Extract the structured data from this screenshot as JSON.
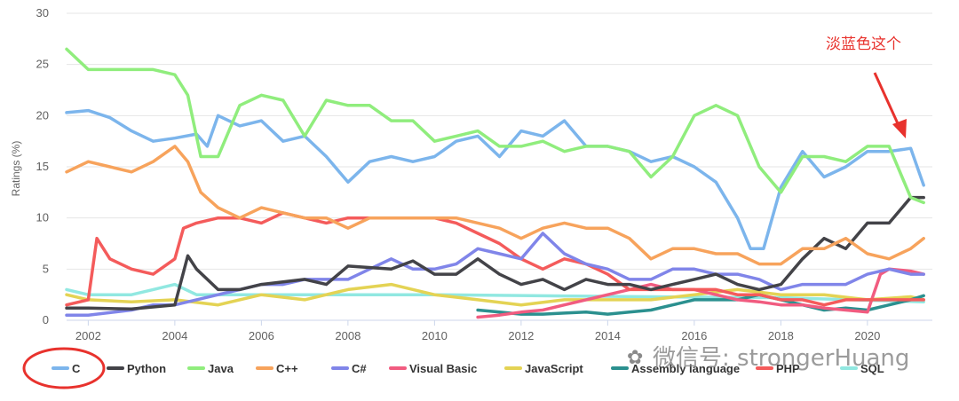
{
  "chart_data": {
    "type": "line",
    "ylabel": "Ratings (%)",
    "xlabel": "",
    "ylim": [
      0,
      30
    ],
    "yticks": [
      "0",
      "5",
      "10",
      "15",
      "20",
      "25",
      "30"
    ],
    "xlim": [
      2001.5,
      2021.5
    ],
    "xticks": [
      "2002",
      "2004",
      "2006",
      "2008",
      "2010",
      "2012",
      "2014",
      "2016",
      "2018",
      "2020"
    ],
    "grid": true,
    "legend": "bottom",
    "series": [
      {
        "name": "C",
        "color": "#7cb5ec",
        "width": 3.5,
        "x": [
          2001.5,
          2002,
          2002.5,
          2003,
          2003.5,
          2004,
          2004.5,
          2004.75,
          2005,
          2005.5,
          2006,
          2006.5,
          2007,
          2007.5,
          2008,
          2008.5,
          2009,
          2009.5,
          2010,
          2010.5,
          2011,
          2011.5,
          2012,
          2012.5,
          2013,
          2013.5,
          2014,
          2014.5,
          2015,
          2015.5,
          2016,
          2016.5,
          2017,
          2017.3,
          2017.6,
          2018,
          2018.5,
          2019,
          2019.5,
          2020,
          2020.5,
          2021,
          2021.3
        ],
        "y": [
          20.3,
          20.5,
          19.8,
          18.5,
          17.5,
          17.8,
          18.2,
          17,
          20,
          19,
          19.5,
          17.5,
          18,
          16,
          13.5,
          15.5,
          16,
          15.5,
          16,
          17.5,
          18,
          16,
          18.5,
          18,
          19.5,
          17,
          17,
          16.5,
          15.5,
          16,
          15,
          13.5,
          10,
          7,
          7,
          13,
          16.5,
          14,
          15,
          16.5,
          16.5,
          16.8,
          13.2
        ]
      },
      {
        "name": "Python",
        "color": "#434348",
        "width": 3.5,
        "x": [
          2001.5,
          2002,
          2003,
          2004,
          2004.3,
          2004.5,
          2005,
          2005.5,
          2006,
          2007,
          2007.5,
          2008,
          2009,
          2009.5,
          2010,
          2010.5,
          2011,
          2011.5,
          2012,
          2012.5,
          2013,
          2013.5,
          2014,
          2014.5,
          2015,
          2015.5,
          2016,
          2016.5,
          2017,
          2017.5,
          2018,
          2018.5,
          2019,
          2019.5,
          2020,
          2020.5,
          2021,
          2021.3
        ],
        "y": [
          1.2,
          1.2,
          1.1,
          1.5,
          6.3,
          5,
          3,
          3,
          3.5,
          4,
          3.5,
          5.3,
          5,
          5.8,
          4.5,
          4.5,
          6,
          4.5,
          3.5,
          4,
          3,
          4,
          3.5,
          3.5,
          3,
          3.5,
          4,
          4.5,
          3.5,
          3,
          3.5,
          6,
          8,
          7,
          9.5,
          9.5,
          12,
          12
        ]
      },
      {
        "name": "Java",
        "color": "#90ed7d",
        "width": 3.5,
        "x": [
          2001.5,
          2002,
          2002.5,
          2003,
          2003.5,
          2004,
          2004.3,
          2004.6,
          2005,
          2005.5,
          2006,
          2006.5,
          2007,
          2007.5,
          2008,
          2008.5,
          2009,
          2009.5,
          2010,
          2010.5,
          2011,
          2011.5,
          2012,
          2012.5,
          2013,
          2013.5,
          2014,
          2014.5,
          2015,
          2015.5,
          2016,
          2016.5,
          2017,
          2017.5,
          2018,
          2018.5,
          2019,
          2019.5,
          2020,
          2020.5,
          2021,
          2021.3
        ],
        "y": [
          26.5,
          24.5,
          24.5,
          24.5,
          24.5,
          24,
          22,
          16,
          16,
          21,
          22,
          21.5,
          18,
          21.5,
          21,
          21,
          19.5,
          19.5,
          17.5,
          18,
          18.5,
          17,
          17,
          17.5,
          16.5,
          17,
          17,
          16.5,
          14,
          16,
          20,
          21,
          20,
          15,
          12.5,
          16,
          16,
          15.5,
          17,
          17,
          12,
          11.5
        ]
      },
      {
        "name": "C++",
        "color": "#f7a35c",
        "width": 3.5,
        "x": [
          2001.5,
          2002,
          2002.5,
          2003,
          2003.5,
          2004,
          2004.3,
          2004.6,
          2005,
          2005.5,
          2006,
          2006.5,
          2007,
          2007.5,
          2008,
          2008.5,
          2009,
          2009.5,
          2010,
          2010.5,
          2011,
          2011.5,
          2012,
          2012.5,
          2013,
          2013.5,
          2014,
          2014.5,
          2015,
          2015.5,
          2016,
          2016.5,
          2017,
          2017.5,
          2018,
          2018.5,
          2019,
          2019.5,
          2020,
          2020.5,
          2021,
          2021.3
        ],
        "y": [
          14.5,
          15.5,
          15,
          14.5,
          15.5,
          17,
          15.5,
          12.5,
          11,
          10,
          11,
          10.5,
          10,
          10,
          9,
          10,
          10,
          10,
          10,
          10,
          9.5,
          9,
          8,
          9,
          9.5,
          9,
          9,
          8,
          6,
          7,
          7,
          6.5,
          6.5,
          5.5,
          5.5,
          7,
          7,
          8,
          6.5,
          6,
          7,
          8
        ]
      },
      {
        "name": "C#",
        "color": "#8085e9",
        "width": 3.5,
        "x": [
          2001.5,
          2002,
          2003,
          2003.5,
          2004,
          2004.5,
          2005,
          2005.5,
          2006,
          2006.5,
          2007,
          2007.5,
          2008,
          2008.5,
          2009,
          2009.5,
          2010,
          2010.5,
          2011,
          2011.5,
          2012,
          2012.5,
          2013,
          2013.5,
          2014,
          2014.5,
          2015,
          2015.5,
          2016,
          2016.5,
          2017,
          2017.5,
          2018,
          2018.5,
          2019,
          2019.5,
          2020,
          2020.5,
          2021,
          2021.3
        ],
        "y": [
          0.5,
          0.5,
          1,
          1.5,
          1.5,
          2,
          2.5,
          3,
          3.5,
          3.5,
          4,
          4,
          4,
          5,
          6,
          5,
          5,
          5.5,
          7,
          6.5,
          6,
          8.5,
          6.5,
          5.5,
          5,
          4,
          4,
          5,
          5,
          4.5,
          4.5,
          4,
          3,
          3.5,
          3.5,
          3.5,
          4.5,
          5,
          4.5,
          4.5
        ]
      },
      {
        "name": "Visual Basic",
        "color": "#f15c80",
        "width": 3.5,
        "x": [
          2011,
          2011.5,
          2012,
          2012.5,
          2013,
          2013.5,
          2014,
          2014.5,
          2015,
          2015.5,
          2016,
          2016.5,
          2017,
          2017.5,
          2018,
          2018.5,
          2019,
          2019.5,
          2020,
          2020.3,
          2020.5,
          2021,
          2021.3
        ],
        "y": [
          0.3,
          0.5,
          0.8,
          1,
          1.5,
          2,
          2.5,
          3,
          3.5,
          3,
          3,
          2.5,
          2,
          1.8,
          1.5,
          1.5,
          1.2,
          1,
          0.8,
          4.5,
          5,
          4.8,
          4.5
        ]
      },
      {
        "name": "JavaScript",
        "color": "#e4d354",
        "width": 3.5,
        "x": [
          2001.5,
          2002,
          2003,
          2004,
          2005,
          2006,
          2007,
          2008,
          2009,
          2010,
          2011,
          2012,
          2013,
          2014,
          2015,
          2016,
          2017,
          2018,
          2019,
          2020,
          2021,
          2021.3
        ],
        "y": [
          2.5,
          2,
          1.8,
          2,
          1.5,
          2.5,
          2,
          3,
          3.5,
          2.5,
          2,
          1.5,
          2,
          2,
          2,
          2.5,
          3,
          2.5,
          2.5,
          2,
          2.3,
          2
        ]
      },
      {
        "name": "Assembly language",
        "color": "#2b908f",
        "width": 3.5,
        "x": [
          2011,
          2011.5,
          2012,
          2012.5,
          2013,
          2013.5,
          2014,
          2014.5,
          2015,
          2015.5,
          2016,
          2016.5,
          2017,
          2017.5,
          2018,
          2018.5,
          2019,
          2019.5,
          2020,
          2020.5,
          2021,
          2021.3
        ],
        "y": [
          1,
          0.8,
          0.6,
          0.6,
          0.7,
          0.8,
          0.6,
          0.8,
          1,
          1.5,
          2,
          2,
          2,
          2.5,
          2,
          1.5,
          1,
          1.2,
          1,
          1.5,
          2,
          2.4
        ]
      },
      {
        "name": "PHP",
        "color": "#f45b5b",
        "width": 3.5,
        "x": [
          2001.5,
          2002,
          2002.2,
          2002.5,
          2003,
          2003.5,
          2004,
          2004.2,
          2004.5,
          2005,
          2005.5,
          2006,
          2006.5,
          2007,
          2007.5,
          2008,
          2008.5,
          2009,
          2009.5,
          2010,
          2010.5,
          2011,
          2011.5,
          2012,
          2012.5,
          2013,
          2013.5,
          2014,
          2014.5,
          2015,
          2015.5,
          2016,
          2016.5,
          2017,
          2017.5,
          2018,
          2018.5,
          2019,
          2019.5,
          2020,
          2020.5,
          2021,
          2021.3
        ],
        "y": [
          1.5,
          2,
          8,
          6,
          5,
          4.5,
          6,
          9,
          9.5,
          10,
          10,
          9.5,
          10.5,
          10,
          9.5,
          10,
          10,
          10,
          10,
          10,
          9.5,
          8.5,
          7.5,
          6,
          5,
          6,
          5.5,
          4.5,
          3,
          3,
          3,
          3,
          3,
          2.5,
          2.5,
          2,
          2,
          1.5,
          2,
          2,
          2,
          2,
          2
        ]
      },
      {
        "name": "SQL",
        "color": "#91e8e1",
        "width": 3.5,
        "x": [
          2001.5,
          2002,
          2002.5,
          2003,
          2003.5,
          2004,
          2004.5,
          2005,
          2010,
          2015,
          2018,
          2021.3
        ],
        "y": [
          3,
          2.5,
          2.5,
          2.5,
          3,
          3.5,
          2.5,
          2.5,
          2.5,
          2.3,
          2.2,
          1.8
        ]
      }
    ]
  },
  "annotation": {
    "text": "淡蓝色这个",
    "color": "#e8322d"
  },
  "watermark": {
    "text": "微信号: strongerHuang"
  }
}
